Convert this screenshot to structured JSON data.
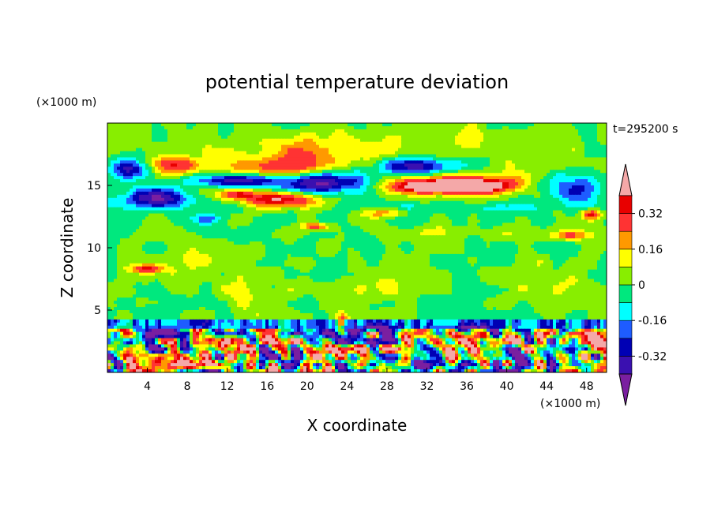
{
  "chart_data": {
    "type": "heatmap",
    "title": "potential temperature deviation",
    "time_label": "t=295200 s",
    "xlabel": "X coordinate",
    "ylabel": "Z coordinate",
    "x_unit": "(×1000 m)",
    "y_unit": "(×1000 m)",
    "xlim": [
      0,
      50
    ],
    "ylim": [
      0,
      20
    ],
    "x_ticks": [
      4,
      8,
      12,
      16,
      20,
      24,
      28,
      32,
      36,
      40,
      44,
      48
    ],
    "y_ticks": [
      5,
      10,
      15
    ],
    "colorbar": {
      "levels": [
        -0.4,
        -0.32,
        -0.24,
        -0.16,
        -0.08,
        0,
        0.08,
        0.16,
        0.24,
        0.32,
        0.4
      ],
      "labels": [
        "0.32",
        "0.16",
        "0",
        "-0.16",
        "-0.32"
      ],
      "label_values": [
        0.32,
        0.16,
        0,
        -0.16,
        -0.32
      ],
      "colors": [
        "#7a1fa0",
        "#3a10b0",
        "#0000b4",
        "#1e5cff",
        "#00ffff",
        "#00e87e",
        "#88ee00",
        "#ffff00",
        "#ff9900",
        "#ff3333",
        "#e80000",
        "#f4a8a8"
      ]
    },
    "blobs": [
      {
        "x": 25,
        "z": 18.5,
        "rx": 25,
        "rz": 1.5,
        "v": 0.08
      },
      {
        "x": 6.5,
        "z": 16.6,
        "rx": 2.8,
        "rz": 0.8,
        "v": 0.35
      },
      {
        "x": 20,
        "z": 17.5,
        "rx": 6,
        "rz": 1.2,
        "v": 0.16
      },
      {
        "x": 17,
        "z": 16.3,
        "rx": 6,
        "rz": 0.9,
        "v": 0.25
      },
      {
        "x": 31,
        "z": 16.5,
        "rx": 4,
        "rz": 0.7,
        "v": -0.35
      },
      {
        "x": 2.5,
        "z": 16.3,
        "rx": 2.5,
        "rz": 0.9,
        "v": -0.35
      },
      {
        "x": 13,
        "z": 15.4,
        "rx": 5,
        "rz": 0.6,
        "v": -0.38
      },
      {
        "x": 22,
        "z": 15.2,
        "rx": 5,
        "rz": 1.0,
        "v": -0.4
      },
      {
        "x": 37,
        "z": 15.1,
        "rx": 9,
        "rz": 0.9,
        "v": 0.33
      },
      {
        "x": 34,
        "z": 14.9,
        "rx": 6,
        "rz": 0.55,
        "v": 0.45
      },
      {
        "x": 5,
        "z": 13.9,
        "rx": 4,
        "rz": 0.9,
        "v": -0.38
      },
      {
        "x": 17.5,
        "z": 13.9,
        "rx": 4,
        "rz": 0.7,
        "v": 0.45
      },
      {
        "x": 13,
        "z": 14.3,
        "rx": 2,
        "rz": 0.5,
        "v": 0.3
      },
      {
        "x": 47,
        "z": 14.8,
        "rx": 3,
        "rz": 1.3,
        "v": -0.35
      },
      {
        "x": 43,
        "z": 15,
        "rx": 2,
        "rz": 0.7,
        "v": -0.2
      },
      {
        "x": 30,
        "z": 13.1,
        "rx": 6,
        "rz": 0.7,
        "v": -0.1
      },
      {
        "x": 28,
        "z": 12.8,
        "rx": 3,
        "rz": 0.4,
        "v": 0.24
      },
      {
        "x": 10,
        "z": 12.3,
        "rx": 2,
        "rz": 0.4,
        "v": -0.16
      },
      {
        "x": 40,
        "z": 13.2,
        "rx": 4,
        "rz": 0.4,
        "v": -0.12
      },
      {
        "x": 48.5,
        "z": 12.7,
        "rx": 1,
        "rz": 0.4,
        "v": 0.35
      },
      {
        "x": 46.5,
        "z": 11,
        "rx": 2,
        "rz": 0.4,
        "v": 0.3
      },
      {
        "x": 21,
        "z": 11.7,
        "rx": 1.5,
        "rz": 0.3,
        "v": 0.3
      },
      {
        "x": 35,
        "z": 11.2,
        "rx": 5,
        "rz": 0.6,
        "v": 0.08
      },
      {
        "x": 10,
        "z": 9.5,
        "rx": 4,
        "rz": 1.6,
        "v": 0.08
      },
      {
        "x": 28,
        "z": 7,
        "rx": 4,
        "rz": 1.8,
        "v": 0.08
      },
      {
        "x": 44,
        "z": 7,
        "rx": 5,
        "rz": 1.8,
        "v": 0.08
      },
      {
        "x": 15,
        "z": 6,
        "rx": 4,
        "rz": 1.5,
        "v": 0.08
      },
      {
        "x": 4,
        "z": 8.3,
        "rx": 1.8,
        "rz": 0.4,
        "v": 0.35
      },
      {
        "x": 23.5,
        "z": 4,
        "rx": 0.6,
        "rz": 0.7,
        "v": 0.3
      },
      {
        "x": 1.5,
        "z": 3,
        "rx": 1,
        "rz": 1,
        "v": 0.35
      },
      {
        "x": 11.5,
        "z": 2.5,
        "rx": 0.9,
        "rz": 1,
        "v": 0.35
      },
      {
        "x": 40,
        "z": 2.8,
        "rx": 2.5,
        "rz": 0.9,
        "v": 0.35
      },
      {
        "x": 30,
        "z": 3,
        "rx": 1,
        "rz": 0.6,
        "v": 0.3
      },
      {
        "x": 37,
        "z": 3.4,
        "rx": 3,
        "rz": 0.4,
        "v": -0.35
      },
      {
        "x": 27,
        "z": 3.4,
        "rx": 3,
        "rz": 0.35,
        "v": -0.3
      },
      {
        "x": 5,
        "z": 3.2,
        "rx": 1.5,
        "rz": 0.4,
        "v": -0.3
      }
    ]
  }
}
